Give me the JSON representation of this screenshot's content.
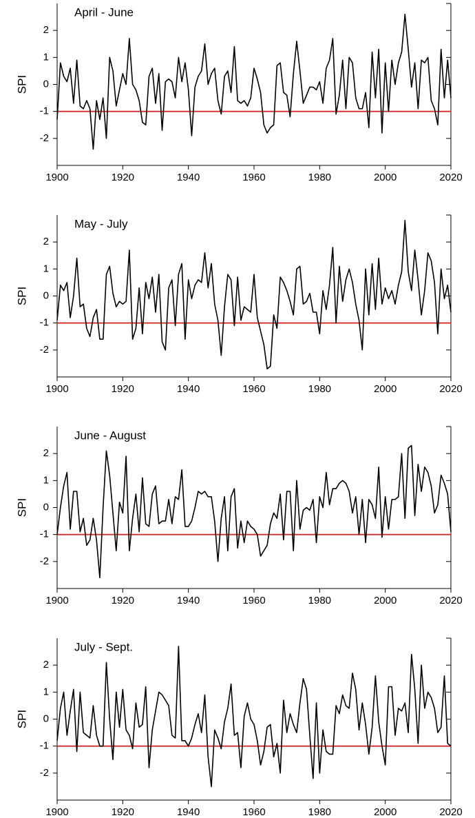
{
  "chart_data": [
    {
      "type": "line",
      "title": "April - June",
      "ylabel": "SPI",
      "x": [
        1900,
        1901,
        1902,
        1903,
        1904,
        1905,
        1906,
        1907,
        1908,
        1909,
        1910,
        1911,
        1912,
        1913,
        1914,
        1915,
        1916,
        1917,
        1918,
        1919,
        1920,
        1921,
        1922,
        1923,
        1924,
        1925,
        1926,
        1927,
        1928,
        1929,
        1930,
        1931,
        1932,
        1933,
        1934,
        1935,
        1936,
        1937,
        1938,
        1939,
        1940,
        1941,
        1942,
        1943,
        1944,
        1945,
        1946,
        1947,
        1948,
        1949,
        1950,
        1951,
        1952,
        1953,
        1954,
        1955,
        1956,
        1957,
        1958,
        1959,
        1960,
        1961,
        1962,
        1963,
        1964,
        1965,
        1966,
        1967,
        1968,
        1969,
        1970,
        1971,
        1972,
        1973,
        1974,
        1975,
        1976,
        1977,
        1978,
        1979,
        1980,
        1981,
        1982,
        1983,
        1984,
        1985,
        1986,
        1987,
        1988,
        1989,
        1990,
        1991,
        1992,
        1993,
        1994,
        1995,
        1996,
        1997,
        1998,
        1999,
        2000,
        2001,
        2002,
        2003,
        2004,
        2005,
        2006,
        2007,
        2008,
        2009,
        2010,
        2011,
        2012,
        2013,
        2014,
        2015,
        2016,
        2017,
        2018,
        2019,
        2020
      ],
      "values": [
        -1.3,
        0.8,
        0.3,
        0.1,
        0.6,
        -0.7,
        0.9,
        -0.8,
        -0.9,
        -0.6,
        -0.9,
        -2.4,
        -0.6,
        -1.3,
        -0.5,
        -2.0,
        1.0,
        0.5,
        -0.8,
        -0.2,
        0.4,
        0.0,
        1.7,
        0.0,
        -0.2,
        -0.6,
        -1.4,
        -1.5,
        0.3,
        0.6,
        -0.7,
        0.4,
        -1.7,
        0.1,
        0.2,
        0.1,
        -0.5,
        1.0,
        0.1,
        0.8,
        -0.2,
        -1.9,
        -0.1,
        0.3,
        0.5,
        1.5,
        0.0,
        0.4,
        0.6,
        -0.6,
        -1.1,
        0.3,
        0.5,
        -0.3,
        1.4,
        -0.6,
        -0.7,
        -0.6,
        -0.8,
        -0.5,
        0.6,
        0.2,
        -0.3,
        -1.5,
        -1.8,
        -1.6,
        -1.5,
        0.7,
        0.8,
        -0.3,
        -0.4,
        -1.2,
        0.4,
        1.6,
        0.5,
        -0.7,
        -0.4,
        -0.1,
        -0.1,
        -0.2,
        0.1,
        -0.7,
        0.6,
        0.9,
        1.7,
        -1.1,
        -0.4,
        0.9,
        -0.9,
        1.0,
        0.8,
        -0.5,
        -0.9,
        -0.9,
        -0.3,
        -1.6,
        1.2,
        -0.5,
        1.3,
        -1.8,
        0.8,
        -1.0,
        0.9,
        0.0,
        0.8,
        1.2,
        2.6,
        1.3,
        -0.1,
        0.8,
        -0.9,
        0.9,
        0.8,
        1.0,
        -0.6,
        -0.9,
        -1.5,
        1.3,
        -0.5,
        0.9,
        -0.5
      ],
      "color": "#000000",
      "reference_line": -1,
      "reference_color": "#d42a2a",
      "xlim": [
        1900,
        2020
      ],
      "xticks": [
        1900,
        1920,
        1940,
        1960,
        1980,
        2000,
        2020
      ],
      "ylim": [
        -3,
        3
      ],
      "yticks": [
        -2,
        -1,
        0,
        1,
        2
      ]
    },
    {
      "type": "line",
      "title": "May - July",
      "ylabel": "SPI",
      "x": [
        1900,
        1901,
        1902,
        1903,
        1904,
        1905,
        1906,
        1907,
        1908,
        1909,
        1910,
        1911,
        1912,
        1913,
        1914,
        1915,
        1916,
        1917,
        1918,
        1919,
        1920,
        1921,
        1922,
        1923,
        1924,
        1925,
        1926,
        1927,
        1928,
        1929,
        1930,
        1931,
        1932,
        1933,
        1934,
        1935,
        1936,
        1937,
        1938,
        1939,
        1940,
        1941,
        1942,
        1943,
        1944,
        1945,
        1946,
        1947,
        1948,
        1949,
        1950,
        1951,
        1952,
        1953,
        1954,
        1955,
        1956,
        1957,
        1958,
        1959,
        1960,
        1961,
        1962,
        1963,
        1964,
        1965,
        1966,
        1967,
        1968,
        1969,
        1970,
        1971,
        1972,
        1973,
        1974,
        1975,
        1976,
        1977,
        1978,
        1979,
        1980,
        1981,
        1982,
        1983,
        1984,
        1985,
        1986,
        1987,
        1988,
        1989,
        1990,
        1991,
        1992,
        1993,
        1994,
        1995,
        1996,
        1997,
        1998,
        1999,
        2000,
        2001,
        2002,
        2003,
        2004,
        2005,
        2006,
        2007,
        2008,
        2009,
        2010,
        2011,
        2012,
        2013,
        2014,
        2015,
        2016,
        2017,
        2018,
        2019,
        2020
      ],
      "values": [
        -0.9,
        0.4,
        0.2,
        0.5,
        -0.8,
        0.0,
        1.4,
        -0.4,
        -0.3,
        -1.2,
        -1.5,
        -0.8,
        -0.5,
        -1.6,
        -1.6,
        0.8,
        1.1,
        0.1,
        -0.4,
        -0.2,
        -0.3,
        -0.2,
        1.7,
        -1.6,
        -1.2,
        0.3,
        -1.4,
        0.5,
        -0.1,
        0.7,
        -0.6,
        0.8,
        -1.7,
        -2.0,
        0.3,
        0.6,
        -1.1,
        0.8,
        1.2,
        -1.6,
        0.6,
        -0.1,
        0.4,
        0.6,
        0.5,
        1.6,
        0.3,
        1.2,
        -0.3,
        -0.9,
        -2.2,
        -0.4,
        0.8,
        0.6,
        -1.1,
        0.7,
        -0.9,
        -0.4,
        -0.5,
        -0.6,
        0.8,
        -0.8,
        -1.3,
        -1.8,
        -2.7,
        -2.6,
        -0.7,
        -1.2,
        0.7,
        0.5,
        0.2,
        -0.2,
        -0.7,
        1.0,
        1.1,
        -0.3,
        -0.2,
        0.1,
        -0.6,
        -0.6,
        -1.4,
        0.2,
        -0.5,
        0.4,
        1.8,
        -1.0,
        1.1,
        -0.2,
        0.6,
        1.0,
        0.5,
        -0.3,
        -0.9,
        -2.0,
        1.0,
        -0.7,
        1.2,
        -0.5,
        1.4,
        -0.3,
        0.3,
        -0.1,
        0.2,
        -0.3,
        0.4,
        0.9,
        2.8,
        0.9,
        0.2,
        1.7,
        0.6,
        -0.7,
        0.2,
        1.6,
        1.3,
        0.5,
        -1.4,
        1.0,
        -0.1,
        0.4,
        -0.6
      ],
      "color": "#000000",
      "reference_line": -1,
      "reference_color": "#d42a2a",
      "xlim": [
        1900,
        2020
      ],
      "xticks": [
        1900,
        1920,
        1940,
        1960,
        1980,
        2000,
        2020
      ],
      "ylim": [
        -3,
        3
      ],
      "yticks": [
        -2,
        -1,
        0,
        1,
        2
      ]
    },
    {
      "type": "line",
      "title": "June - August",
      "ylabel": "SPI",
      "x": [
        1900,
        1901,
        1902,
        1903,
        1904,
        1905,
        1906,
        1907,
        1908,
        1909,
        1910,
        1911,
        1912,
        1913,
        1914,
        1915,
        1916,
        1917,
        1918,
        1919,
        1920,
        1921,
        1922,
        1923,
        1924,
        1925,
        1926,
        1927,
        1928,
        1929,
        1930,
        1931,
        1932,
        1933,
        1934,
        1935,
        1936,
        1937,
        1938,
        1939,
        1940,
        1941,
        1942,
        1943,
        1944,
        1945,
        1946,
        1947,
        1948,
        1949,
        1950,
        1951,
        1952,
        1953,
        1954,
        1955,
        1956,
        1957,
        1958,
        1959,
        1960,
        1961,
        1962,
        1963,
        1964,
        1965,
        1966,
        1967,
        1968,
        1969,
        1970,
        1971,
        1972,
        1973,
        1974,
        1975,
        1976,
        1977,
        1978,
        1979,
        1980,
        1981,
        1982,
        1983,
        1984,
        1985,
        1986,
        1987,
        1988,
        1989,
        1990,
        1991,
        1992,
        1993,
        1994,
        1995,
        1996,
        1997,
        1998,
        1999,
        2000,
        2001,
        2002,
        2003,
        2004,
        2005,
        2006,
        2007,
        2008,
        2009,
        2010,
        2011,
        2012,
        2013,
        2014,
        2015,
        2016,
        2017,
        2018,
        2019,
        2020
      ],
      "values": [
        -1.0,
        0.0,
        0.8,
        1.3,
        -0.8,
        0.6,
        0.6,
        -0.9,
        -0.4,
        -1.4,
        -1.2,
        -0.4,
        -1.2,
        -2.6,
        0.0,
        2.1,
        1.2,
        -0.2,
        -1.6,
        0.2,
        -0.2,
        1.9,
        -1.6,
        -0.4,
        0.5,
        -0.9,
        1.1,
        -0.6,
        -0.7,
        0.5,
        0.8,
        -0.6,
        -0.5,
        -0.5,
        0.3,
        -0.6,
        0.4,
        0.3,
        1.4,
        -0.7,
        -0.7,
        -0.5,
        0.0,
        0.6,
        0.5,
        0.6,
        0.4,
        0.4,
        -0.5,
        -2.0,
        -0.4,
        0.4,
        -1.6,
        0.4,
        0.7,
        -1.5,
        -0.5,
        -1.3,
        -0.5,
        -0.7,
        -0.8,
        -1.0,
        -1.8,
        -1.6,
        -1.4,
        -0.6,
        -0.2,
        -0.4,
        0.5,
        -1.2,
        0.6,
        0.6,
        -1.6,
        1.0,
        -0.8,
        -0.1,
        0.0,
        -0.1,
        0.3,
        -1.3,
        0.4,
        0.0,
        1.3,
        0.1,
        0.7,
        0.7,
        0.9,
        1.0,
        0.9,
        0.6,
        -0.2,
        0.4,
        -1.0,
        0.3,
        -1.3,
        0.3,
        0.1,
        -0.4,
        1.5,
        -1.1,
        0.4,
        -0.8,
        0.3,
        0.3,
        0.4,
        2.0,
        -0.4,
        2.2,
        2.3,
        -0.3,
        1.6,
        0.6,
        1.5,
        1.3,
        0.8,
        -0.2,
        0.1,
        1.2,
        0.9,
        0.5,
        -0.9
      ],
      "color": "#000000",
      "reference_line": -1,
      "reference_color": "#d42a2a",
      "xlim": [
        1900,
        2020
      ],
      "xticks": [
        1900,
        1920,
        1940,
        1960,
        1980,
        2000,
        2020
      ],
      "ylim": [
        -3,
        3
      ],
      "yticks": [
        -2,
        -1,
        0,
        1,
        2
      ]
    },
    {
      "type": "line",
      "title": "July - Sept.",
      "ylabel": "SPI",
      "x": [
        1900,
        1901,
        1902,
        1903,
        1904,
        1905,
        1906,
        1907,
        1908,
        1909,
        1910,
        1911,
        1912,
        1913,
        1914,
        1915,
        1916,
        1917,
        1918,
        1919,
        1920,
        1921,
        1922,
        1923,
        1924,
        1925,
        1926,
        1927,
        1928,
        1929,
        1930,
        1931,
        1932,
        1933,
        1934,
        1935,
        1936,
        1937,
        1938,
        1939,
        1940,
        1941,
        1942,
        1943,
        1944,
        1945,
        1946,
        1947,
        1948,
        1949,
        1950,
        1951,
        1952,
        1953,
        1954,
        1955,
        1956,
        1957,
        1958,
        1959,
        1960,
        1961,
        1962,
        1963,
        1964,
        1965,
        1966,
        1967,
        1968,
        1969,
        1970,
        1971,
        1972,
        1973,
        1974,
        1975,
        1976,
        1977,
        1978,
        1979,
        1980,
        1981,
        1982,
        1983,
        1984,
        1985,
        1986,
        1987,
        1988,
        1989,
        1990,
        1991,
        1992,
        1993,
        1994,
        1995,
        1996,
        1997,
        1998,
        1999,
        2000,
        2001,
        2002,
        2003,
        2004,
        2005,
        2006,
        2007,
        2008,
        2009,
        2010,
        2011,
        2012,
        2013,
        2014,
        2015,
        2016,
        2017,
        2018,
        2019,
        2020
      ],
      "values": [
        -0.8,
        0.4,
        1.0,
        -0.6,
        0.3,
        1.1,
        -1.2,
        1.0,
        -0.5,
        -0.6,
        -0.7,
        0.5,
        -0.6,
        -1.0,
        -1.0,
        2.1,
        0.0,
        -1.5,
        1.0,
        -0.3,
        1.1,
        -0.4,
        -0.6,
        -1.1,
        0.6,
        -0.3,
        -0.2,
        1.2,
        -1.8,
        -0.4,
        0.3,
        1.0,
        0.9,
        0.7,
        0.5,
        -0.6,
        -0.7,
        2.7,
        -0.8,
        -0.8,
        -1.0,
        -0.7,
        -0.2,
        0.2,
        -0.5,
        0.9,
        -1.4,
        -2.5,
        -0.4,
        -0.7,
        -1.1,
        -0.1,
        0.4,
        1.3,
        -0.6,
        -0.5,
        -1.8,
        0.1,
        0.6,
        0.0,
        -0.2,
        -0.8,
        -1.7,
        -1.2,
        -0.3,
        -0.2,
        -1.4,
        -0.9,
        -2.0,
        0.7,
        -0.5,
        0.2,
        -0.2,
        -0.5,
        0.6,
        1.5,
        1.1,
        -0.6,
        -2.2,
        0.6,
        -2.0,
        -0.4,
        -1.2,
        -1.3,
        -1.3,
        0.5,
        0.2,
        0.9,
        0.5,
        0.4,
        1.7,
        1.1,
        -0.4,
        0.6,
        -0.2,
        -1.3,
        -0.3,
        1.6,
        -0.1,
        -1.0,
        -1.7,
        1.2,
        1.2,
        -0.6,
        0.4,
        0.3,
        0.6,
        -0.5,
        2.4,
        1.1,
        -0.9,
        2.0,
        0.4,
        1.0,
        0.8,
        0.4,
        -0.5,
        -0.3,
        1.6,
        -0.9,
        -1.0
      ],
      "color": "#000000",
      "reference_line": -1,
      "reference_color": "#d42a2a",
      "xlim": [
        1900,
        2020
      ],
      "xticks": [
        1900,
        1920,
        1940,
        1960,
        1980,
        2000,
        2020
      ],
      "ylim": [
        -3,
        3
      ],
      "yticks": [
        -2,
        -1,
        0,
        1,
        2
      ]
    }
  ]
}
